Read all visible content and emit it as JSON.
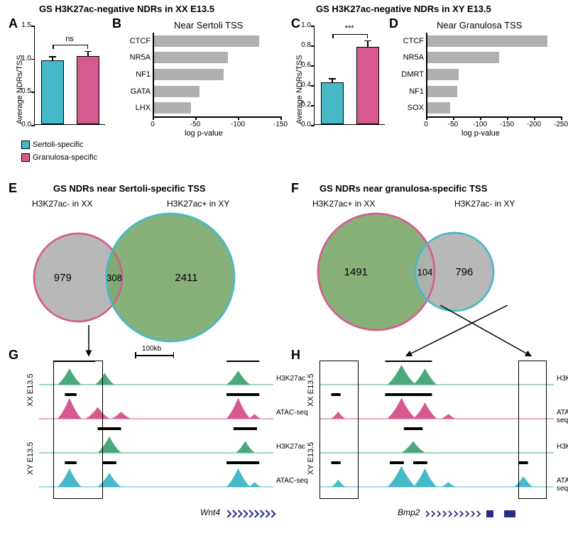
{
  "colors": {
    "sertoli": "#46b9c9",
    "granulosa": "#d65a8f",
    "h3k27ac": "#4aa97b",
    "grey": "#b0b0b0",
    "overlap": "#7aa96a",
    "gene": "#2b2e86"
  },
  "titles": {
    "row1_left": "GS H3K27ac-negative NDRs in XX E13.5",
    "row1_right": "GS H3K27ac-negative NDRs in XY E13.5",
    "E": "GS NDRs near Sertoli-specific TSS",
    "F": "GS NDRs near granulosa-specific TSS"
  },
  "panel_labels": {
    "A": "A",
    "B": "B",
    "C": "C",
    "D": "D",
    "E": "E",
    "F": "F",
    "G": "G",
    "H": "H"
  },
  "panelA": {
    "ylabel": "Average NDRs/TSS",
    "ylim": [
      0,
      1.5
    ],
    "yticks": [
      0,
      0.5,
      1.0,
      1.5
    ],
    "bars": [
      {
        "label": "Sertoli-specific",
        "value": 0.96,
        "err": 0.06,
        "colorKey": "sertoli"
      },
      {
        "label": "Granulosa-specific",
        "value": 1.03,
        "err": 0.07,
        "colorKey": "granulosa"
      }
    ],
    "sig": "ns"
  },
  "panelC": {
    "ylabel": "Average NDRs/TSS",
    "ylim": [
      0,
      1.0
    ],
    "yticks": [
      0,
      0.2,
      0.4,
      0.6,
      0.8,
      1.0
    ],
    "bars": [
      {
        "label": "Sertoli-specific",
        "value": 0.42,
        "err": 0.04,
        "colorKey": "sertoli"
      },
      {
        "label": "Granulosa-specific",
        "value": 0.78,
        "err": 0.06,
        "colorKey": "granulosa"
      }
    ],
    "sig": "***"
  },
  "legend": {
    "sertoli": "Sertoli-specific",
    "granulosa": "Granulosa-specific"
  },
  "panelB": {
    "title": "Near Sertoli TSS",
    "xlabel": "log p-value",
    "xlim": [
      0,
      -150
    ],
    "xticks": [
      0,
      -50,
      -100,
      -150
    ],
    "bars": [
      {
        "label": "CTCF",
        "value": -125
      },
      {
        "label": "NR5A",
        "value": -88
      },
      {
        "label": "NF1",
        "value": -83
      },
      {
        "label": "GATA",
        "value": -55
      },
      {
        "label": "LHX",
        "value": -45
      }
    ]
  },
  "panelD": {
    "title": "Near Granulosa TSS",
    "xlabel": "log p-value",
    "xlim": [
      0,
      -250
    ],
    "xticks": [
      0,
      -50,
      -100,
      -150,
      -200,
      -250
    ],
    "bars": [
      {
        "label": "CTCF",
        "value": -225
      },
      {
        "label": "NR5A",
        "value": -135
      },
      {
        "label": "DMRT",
        "value": -60
      },
      {
        "label": "NF1",
        "value": -58
      },
      {
        "label": "SOX",
        "value": -45
      }
    ]
  },
  "vennE": {
    "left_label": "H3K27ac- in XX",
    "right_label": "H3K27ac+ in XY",
    "left_n": "979",
    "mid_n": "308",
    "right_n": "2411",
    "left_stroke": "granulosa",
    "right_stroke": "sertoli",
    "left_fill": "grey",
    "right_fill": "overlap"
  },
  "vennF": {
    "left_label": "H3K27ac+ in XX",
    "right_label": "H3K27ac- in XY",
    "left_n": "1491",
    "mid_n": "104",
    "right_n": "796",
    "left_stroke": "granulosa",
    "right_stroke": "sertoli",
    "left_fill": "overlap",
    "right_fill": "grey"
  },
  "tracks": {
    "scalebar": "100kb",
    "rows": [
      "XX E13.5",
      "XY E13.5"
    ],
    "tracknames": [
      "H3K27ac",
      "ATAC-seq",
      "H3K27ac",
      "ATAC-seq"
    ],
    "geneG": "Wnt4",
    "geneH": "Bmp2"
  }
}
